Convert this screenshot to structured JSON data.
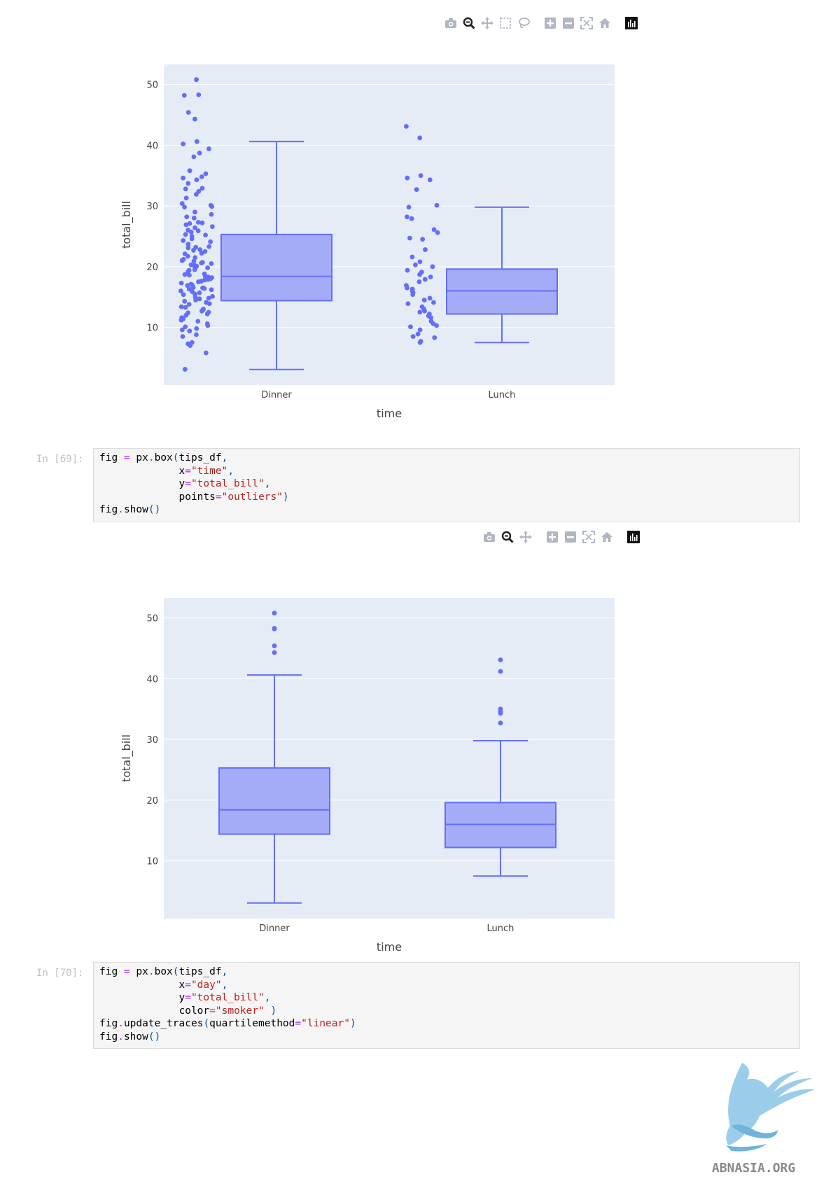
{
  "modebar_1": {
    "buttons": [
      {
        "name": "camera-icon"
      },
      {
        "name": "zoom-icon"
      },
      {
        "name": "pan-icon"
      },
      {
        "name": "box-select-icon"
      },
      {
        "name": "lasso-icon"
      },
      {
        "name": "gap"
      },
      {
        "name": "zoom-in-icon"
      },
      {
        "name": "zoom-out-icon"
      },
      {
        "name": "autoscale-icon"
      },
      {
        "name": "reset-home-icon"
      },
      {
        "name": "gap"
      },
      {
        "name": "plotly-logo-icon"
      }
    ]
  },
  "modebar_2": {
    "buttons": [
      {
        "name": "camera-icon"
      },
      {
        "name": "zoom-icon"
      },
      {
        "name": "pan-icon"
      },
      {
        "name": "gap"
      },
      {
        "name": "zoom-in-icon"
      },
      {
        "name": "zoom-out-icon"
      },
      {
        "name": "autoscale-icon"
      },
      {
        "name": "reset-home-icon"
      },
      {
        "name": "gap"
      },
      {
        "name": "plotly-logo-icon"
      }
    ]
  },
  "colors": {
    "plot_bg": "#e5ecf6",
    "grid": "#ffffff",
    "box_fill": "#a4abf7",
    "box_line": "#636efa",
    "marker": "#636efa",
    "modebar_icon": "#b0b7c3"
  },
  "chart_data": [
    {
      "type": "box",
      "points": "all",
      "xlabel": "time",
      "ylabel": "total_bill",
      "categories": [
        "Dinner",
        "Lunch"
      ],
      "yticks": [
        10,
        20,
        30,
        40,
        50
      ],
      "ylim": [
        0.5,
        53.3
      ],
      "grid": true,
      "boxes": [
        {
          "category": "Dinner",
          "min": 3.07,
          "q1": 14.4,
          "median": 18.4,
          "q3": 25.3,
          "upper_fence": 40.6,
          "points": [
            50.8,
            48.3,
            48.2,
            45.4,
            44.3,
            40.6,
            40.2,
            39.4,
            38.7,
            38.1,
            35.8,
            35.3,
            34.8,
            34.6,
            34.3,
            33.7,
            32.9,
            32.8,
            32.4,
            31.9,
            31.3,
            30.4,
            30.1,
            29.9,
            29.8,
            29.0,
            28.6,
            28.2,
            28.0,
            27.3,
            27.2,
            27.1,
            26.9,
            26.6,
            26.4,
            26.0,
            25.9,
            25.7,
            25.3,
            25.2,
            25.0,
            24.6,
            24.3,
            24.1,
            23.7,
            23.3,
            23.2,
            23.1,
            22.8,
            22.7,
            22.5,
            22.2,
            22.1,
            21.7,
            21.5,
            21.2,
            21.0,
            20.9,
            20.7,
            20.6,
            20.5,
            20.3,
            20.2,
            20.1,
            20.0,
            19.8,
            19.7,
            19.5,
            19.4,
            19.2,
            18.8,
            18.7,
            18.6,
            18.4,
            18.3,
            18.2,
            18.0,
            17.9,
            17.8,
            17.6,
            17.5,
            17.3,
            17.1,
            17.0,
            16.9,
            16.6,
            16.5,
            16.4,
            16.3,
            16.2,
            16.0,
            15.9,
            15.7,
            15.5,
            15.4,
            15.1,
            15.0,
            14.8,
            14.7,
            14.5,
            14.3,
            14.1,
            13.9,
            13.8,
            13.4,
            13.3,
            13.0,
            12.9,
            12.7,
            12.5,
            12.4,
            12.2,
            12.0,
            11.6,
            11.4,
            11.2,
            11.0,
            10.6,
            10.3,
            10.1,
            9.8,
            9.6,
            9.4,
            8.8,
            8.5,
            7.5,
            7.3,
            7.0,
            5.8,
            3.1
          ]
        },
        {
          "category": "Lunch",
          "min": 7.51,
          "q1": 12.2,
          "median": 16.0,
          "q3": 19.6,
          "upper_fence": 29.8,
          "points": [
            43.1,
            41.2,
            35.0,
            34.6,
            34.3,
            32.7,
            30.1,
            29.8,
            28.2,
            27.9,
            26.1,
            25.6,
            24.7,
            24.5,
            22.8,
            21.6,
            20.8,
            20.3,
            20.0,
            19.4,
            19.1,
            18.7,
            18.3,
            17.9,
            17.5,
            16.9,
            16.5,
            16.3,
            16.0,
            15.7,
            15.4,
            14.8,
            14.5,
            14.1,
            13.9,
            13.4,
            13.0,
            12.7,
            12.5,
            12.2,
            11.9,
            11.6,
            11.0,
            10.6,
            10.3,
            10.1,
            9.6,
            8.9,
            8.5,
            8.3,
            7.7,
            7.5
          ]
        }
      ]
    },
    {
      "type": "box",
      "points": "outliers",
      "xlabel": "time",
      "ylabel": "total_bill",
      "categories": [
        "Dinner",
        "Lunch"
      ],
      "yticks": [
        10,
        20,
        30,
        40,
        50
      ],
      "ylim": [
        0.5,
        53.3
      ],
      "grid": true,
      "boxes": [
        {
          "category": "Dinner",
          "min": 3.07,
          "q1": 14.4,
          "median": 18.4,
          "q3": 25.3,
          "upper_fence": 40.6,
          "points": [
            50.8,
            48.3,
            48.2,
            45.4,
            44.3
          ]
        },
        {
          "category": "Lunch",
          "min": 7.51,
          "q1": 12.2,
          "median": 16.0,
          "q3": 19.6,
          "upper_fence": 29.8,
          "points": [
            43.1,
            41.2,
            35.0,
            34.6,
            34.3,
            32.7
          ]
        }
      ]
    }
  ],
  "cells": [
    {
      "prompt": "In [69]:",
      "lines": [
        [
          [
            "t",
            "fig "
          ],
          [
            "o",
            "="
          ],
          [
            "t",
            " px"
          ],
          [
            "o",
            "."
          ],
          [
            "t",
            "box"
          ],
          [
            "p",
            "("
          ],
          [
            "t",
            "tips_df"
          ],
          [
            "p",
            ","
          ]
        ],
        [
          [
            "t",
            "             x"
          ],
          [
            "o",
            "="
          ],
          [
            "s",
            "\"time\""
          ],
          [
            "p",
            ","
          ]
        ],
        [
          [
            "t",
            "             y"
          ],
          [
            "o",
            "="
          ],
          [
            "s",
            "\"total_bill\""
          ],
          [
            "p",
            ","
          ]
        ],
        [
          [
            "t",
            "             points"
          ],
          [
            "o",
            "="
          ],
          [
            "s",
            "\"outliers\""
          ],
          [
            "p",
            ")"
          ]
        ],
        [
          [
            "t",
            "fig"
          ],
          [
            "o",
            "."
          ],
          [
            "t",
            "show"
          ],
          [
            "p",
            "()"
          ]
        ]
      ]
    },
    {
      "prompt": "In [70]:",
      "lines": [
        [
          [
            "t",
            "fig "
          ],
          [
            "o",
            "="
          ],
          [
            "t",
            " px"
          ],
          [
            "o",
            "."
          ],
          [
            "t",
            "box"
          ],
          [
            "p",
            "("
          ],
          [
            "t",
            "tips_df"
          ],
          [
            "p",
            ","
          ]
        ],
        [
          [
            "t",
            "             x"
          ],
          [
            "o",
            "="
          ],
          [
            "s",
            "\"day\""
          ],
          [
            "p",
            ","
          ]
        ],
        [
          [
            "t",
            "             y"
          ],
          [
            "o",
            "="
          ],
          [
            "s",
            "\"total_bill\""
          ],
          [
            "p",
            ","
          ]
        ],
        [
          [
            "t",
            "             color"
          ],
          [
            "o",
            "="
          ],
          [
            "s",
            "\"smoker\""
          ],
          [
            "t",
            " "
          ],
          [
            "p",
            ")"
          ]
        ],
        [
          [
            "t",
            "fig"
          ],
          [
            "o",
            "."
          ],
          [
            "t",
            "update_traces"
          ],
          [
            "p",
            "("
          ],
          [
            "t",
            "quartilemethod"
          ],
          [
            "o",
            "="
          ],
          [
            "s",
            "\"linear\""
          ],
          [
            "p",
            ")"
          ]
        ],
        [
          [
            "t",
            "fig"
          ],
          [
            "o",
            "."
          ],
          [
            "t",
            "show"
          ],
          [
            "p",
            "()"
          ]
        ]
      ]
    }
  ],
  "watermark": {
    "text": "ABNASIA.ORG"
  }
}
